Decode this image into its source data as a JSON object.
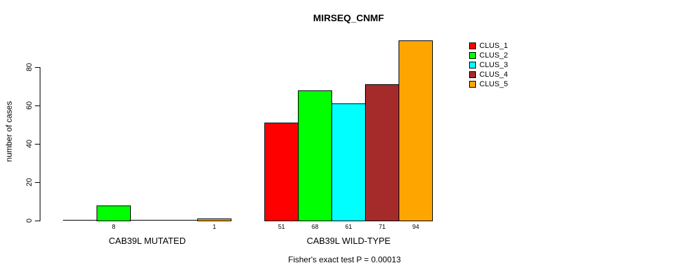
{
  "title": "MIRSEQ_CNMF",
  "chart_data": {
    "type": "bar",
    "title": "MIRSEQ_CNMF",
    "ylabel": "number of cases",
    "xlabel": "",
    "categories": [
      "CAB39L MUTATED",
      "CAB39L WILD-TYPE"
    ],
    "series": [
      {
        "name": "CLUS_1",
        "color": "#ff0000",
        "values": [
          0,
          51
        ]
      },
      {
        "name": "CLUS_2",
        "color": "#00ff00",
        "values": [
          8,
          68
        ]
      },
      {
        "name": "CLUS_3",
        "color": "#00ffff",
        "values": [
          0,
          61
        ]
      },
      {
        "name": "CLUS_4",
        "color": "#a52a2a",
        "values": [
          0,
          71
        ]
      },
      {
        "name": "CLUS_5",
        "color": "#ffa500",
        "values": [
          1,
          94
        ]
      }
    ],
    "yticks": [
      0,
      20,
      40,
      60,
      80
    ],
    "ylim": [
      0,
      94
    ],
    "grid": false,
    "bar_value_labels": [
      8,
      1,
      51,
      68,
      61,
      71,
      94
    ],
    "legend": {
      "position": "right",
      "entries": [
        "CLUS_1",
        "CLUS_2",
        "CLUS_3",
        "CLUS_4",
        "CLUS_5"
      ]
    },
    "annotation": "Fisher's exact test P = 0.00013"
  }
}
